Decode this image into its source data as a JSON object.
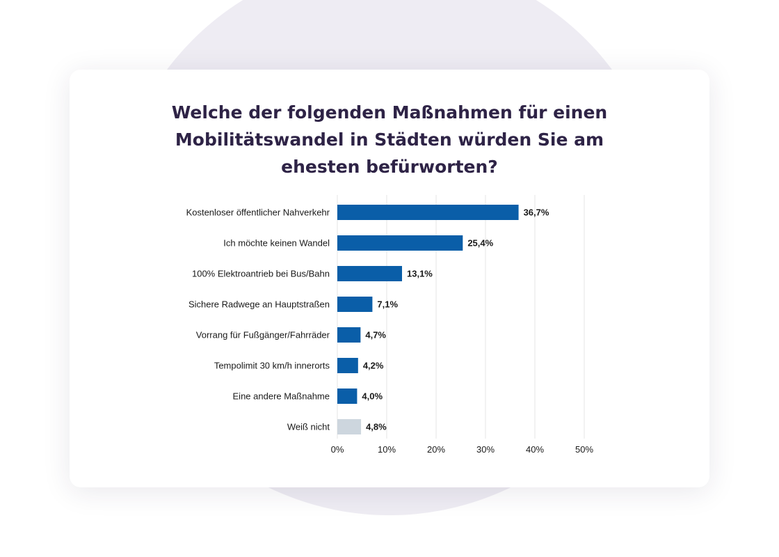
{
  "chart_data": {
    "type": "bar",
    "orientation": "horizontal",
    "title_lines": [
      "Welche der folgenden Maßnahmen für einen",
      "Mobilitätswandel in Städten würden Sie am",
      "ehesten befürworten?"
    ],
    "categories": [
      "Kostenloser öffentlicher Nahverkehr",
      "Ich möchte keinen Wandel",
      "100% Elektroantrieb bei Bus/Bahn",
      "Sichere Radwege an Hauptstraßen",
      "Vorrang für Fußgänger/Fahrräder",
      "Tempolimit 30 km/h innerorts",
      "Eine andere Maßnahme",
      "Weiß nicht"
    ],
    "values": [
      36.7,
      25.4,
      13.1,
      7.1,
      4.7,
      4.2,
      4.0,
      4.8
    ],
    "value_labels": [
      "36,7%",
      "25,4%",
      "13,1%",
      "7,1%",
      "4,7%",
      "4,2%",
      "4,0%",
      "4,8%"
    ],
    "bar_colors": [
      "#0a5ea8",
      "#0a5ea8",
      "#0a5ea8",
      "#0a5ea8",
      "#0a5ea8",
      "#0a5ea8",
      "#0a5ea8",
      "#cdd6de"
    ],
    "xlim": [
      0,
      50
    ],
    "xticks": [
      0,
      10,
      20,
      30,
      40,
      50
    ],
    "xtick_labels": [
      "0%",
      "10%",
      "20%",
      "30%",
      "40%",
      "50%"
    ],
    "grid": true,
    "xlabel": "",
    "ylabel": ""
  },
  "colors": {
    "title": "#2e2346",
    "bar": "#0a5ea8",
    "bar_muted": "#cdd6de",
    "grid": "#e6e6e6",
    "background_circle": "#eeecf3"
  }
}
